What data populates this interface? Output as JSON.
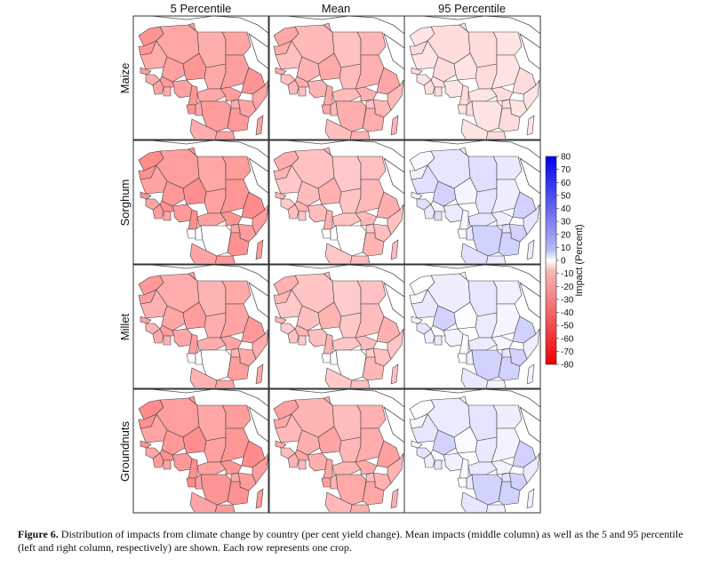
{
  "figure": {
    "columns": [
      "5 Percentile",
      "Mean",
      "95 Percentile"
    ],
    "rows": [
      "Maize",
      "Sorghum",
      "Millet",
      "Groundnuts"
    ],
    "colorbar": {
      "title": "Impact (Percent)",
      "ticks": [
        "80",
        "70",
        "60",
        "50",
        "40",
        "30",
        "20",
        "10",
        "0",
        "-10",
        "-20",
        "-30",
        "-40",
        "-50",
        "-60",
        "-70",
        "-80"
      ],
      "min": -80,
      "max": 80,
      "colors": {
        "positive_max": "#0000ee",
        "zero": "#ffffff",
        "negative_max": "#ee0000"
      }
    }
  },
  "caption": {
    "label": "Figure 6.",
    "text": " Distribution of impacts from climate change by country (per cent yield change). Mean impacts (middle column) as well as the 5 and 95 percentile (left and right column, respectively) are shown. Each row represents one crop."
  }
}
